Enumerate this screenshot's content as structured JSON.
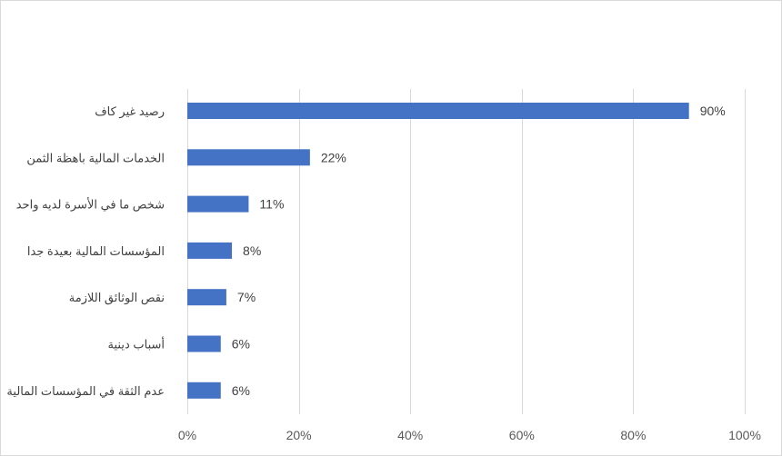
{
  "chart_data": {
    "type": "bar",
    "orientation": "horizontal",
    "categories": [
      "رصيد غير كاف",
      "الخدمات المالية باهظة الثمن",
      "شخص ما في الأسرة لديه واحد",
      "المؤسسات المالية بعيدة جدا",
      "نقص الوثائق اللازمة",
      "أسباب دينية",
      "عدم الثقة في المؤسسات المالية"
    ],
    "values": [
      90,
      22,
      11,
      8,
      7,
      6,
      6
    ],
    "data_labels": [
      "90%",
      "22%",
      "11%",
      "8%",
      "7%",
      "6%",
      "6%"
    ],
    "xlim": [
      0,
      100
    ],
    "xticks": [
      0,
      20,
      40,
      60,
      80,
      100
    ],
    "xtick_labels": [
      "0%",
      "20%",
      "40%",
      "60%",
      "80%",
      "100%"
    ],
    "title": "",
    "xlabel": "",
    "ylabel": "",
    "grid": true,
    "legend": "none",
    "bar_color": "#4472c4",
    "grid_color": "#d9d9d9"
  }
}
